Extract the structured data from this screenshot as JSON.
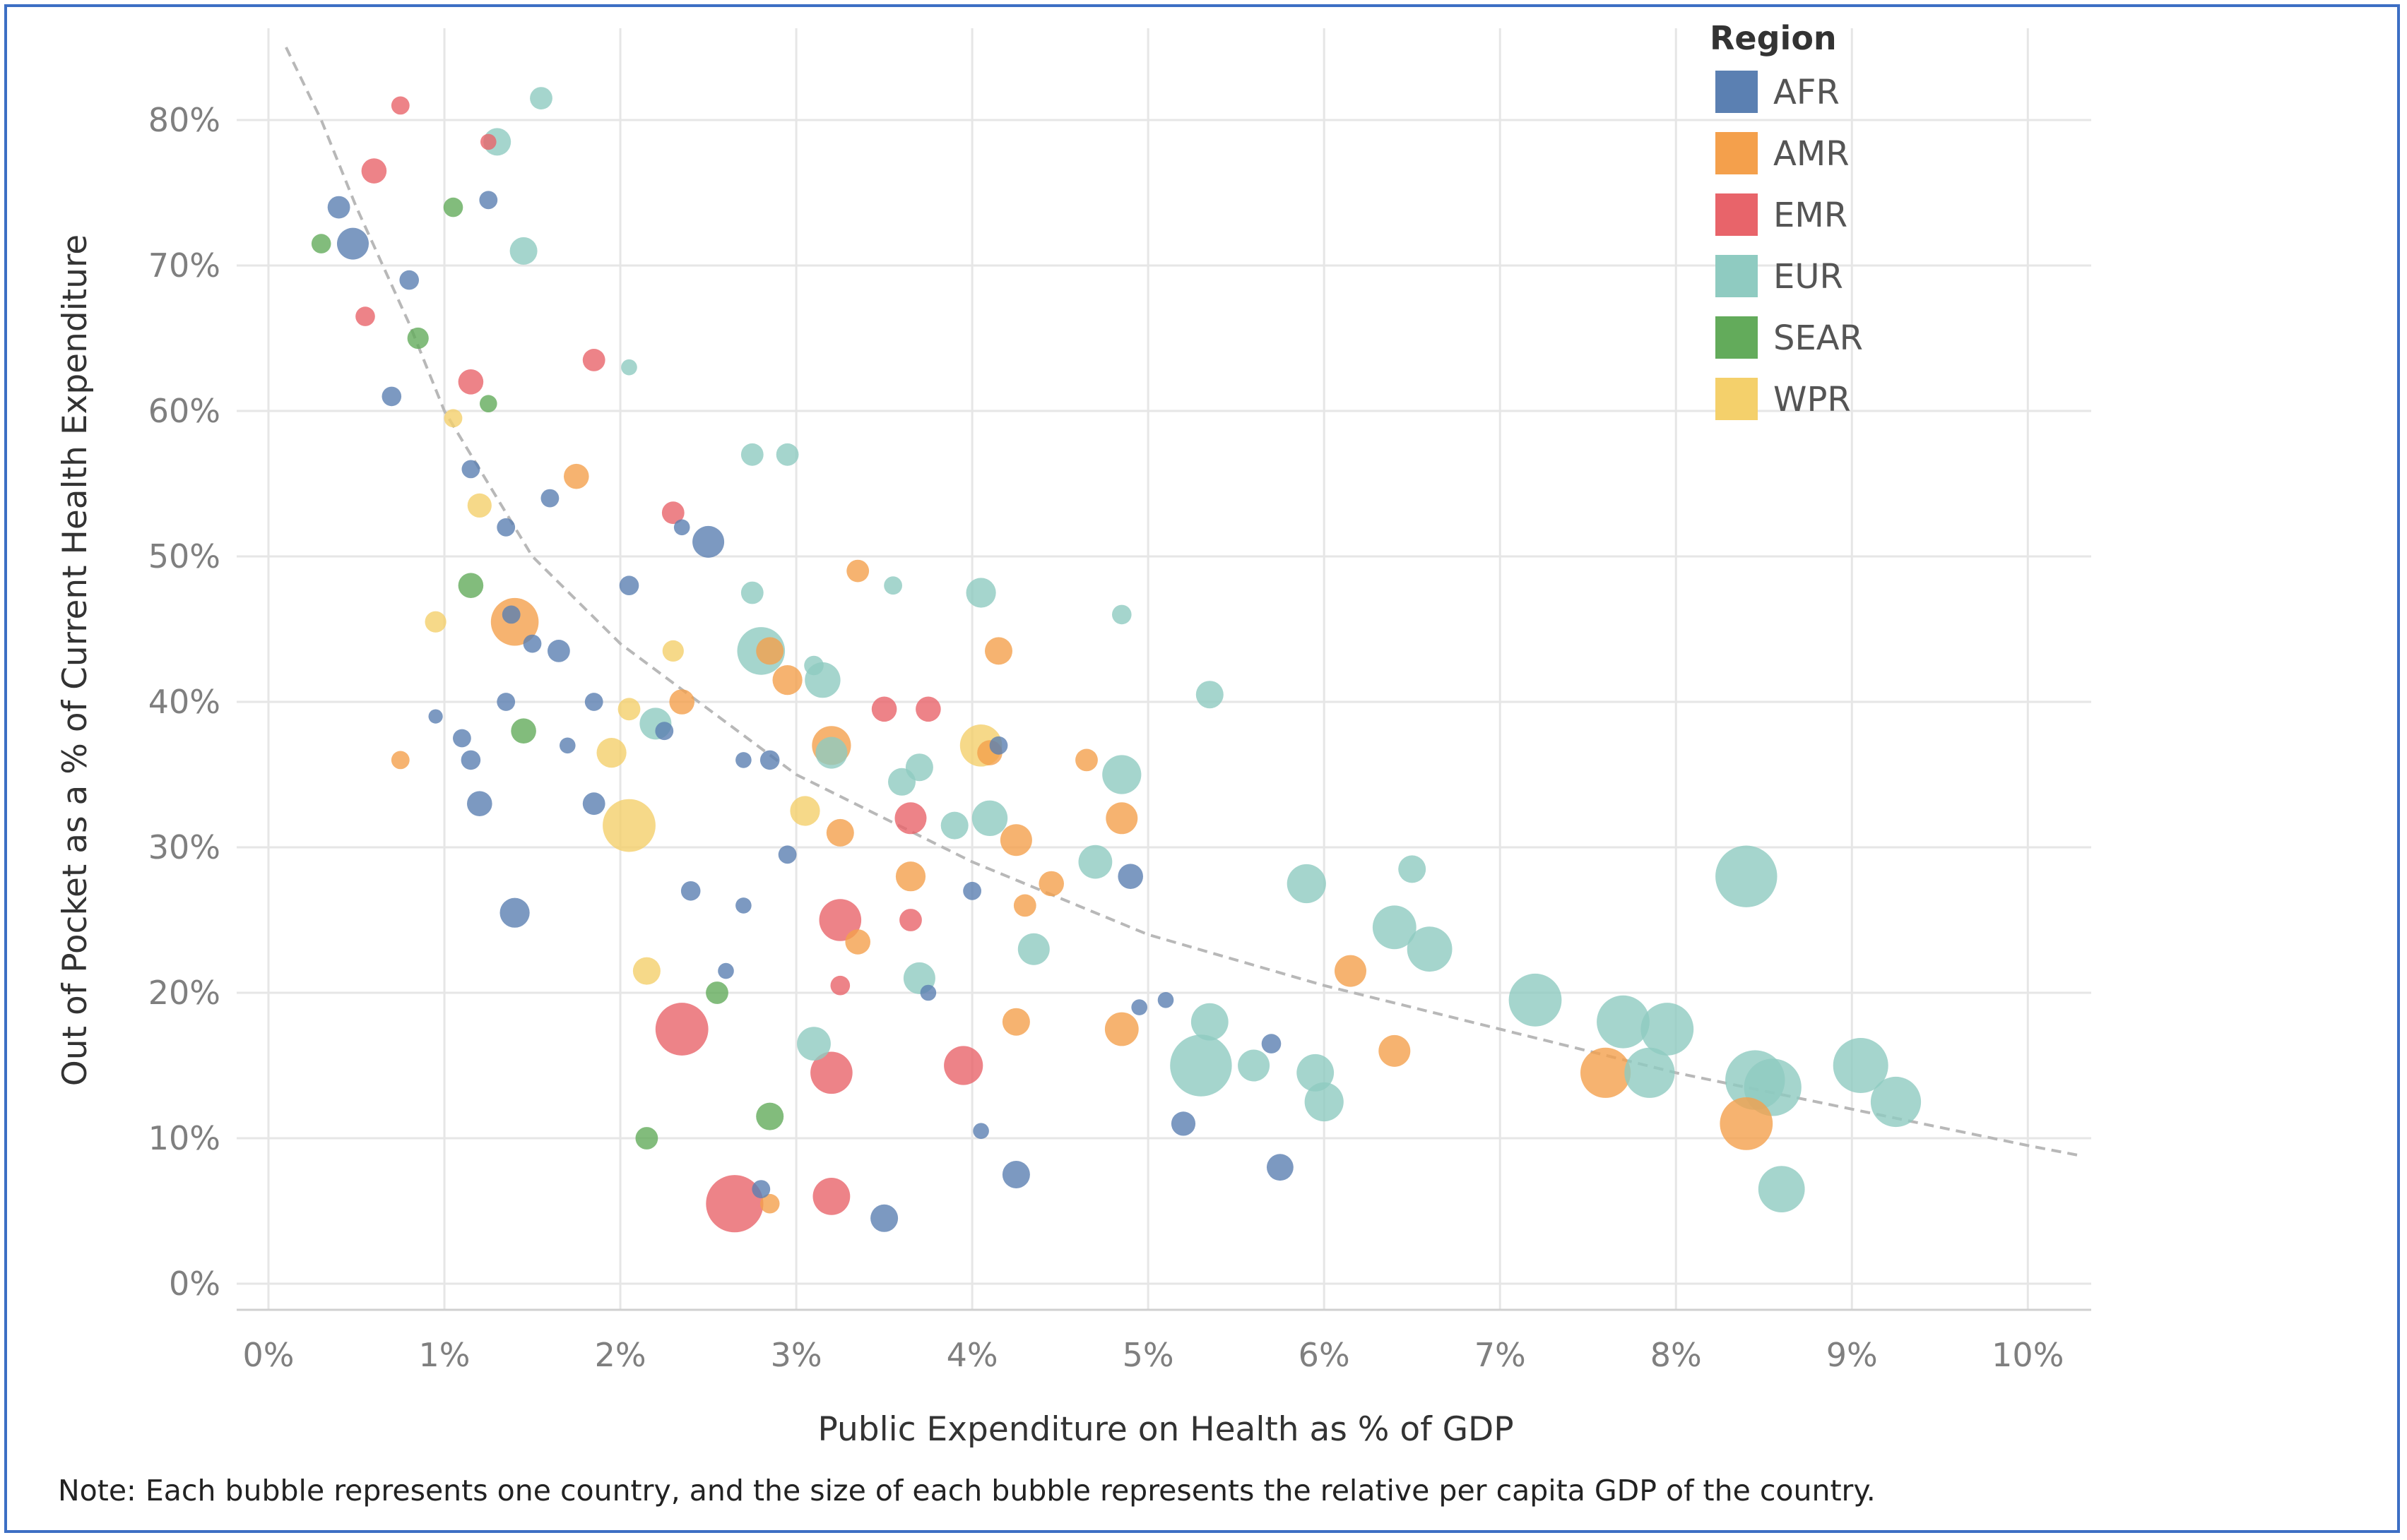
{
  "chart_data": {
    "type": "scatter",
    "subtype": "bubble",
    "title": "",
    "xlabel": "Public Expenditure on Health as % of GDP",
    "ylabel": "Out of Pocket as a % of Current Health Expenditure",
    "xlim": [
      0,
      10.3
    ],
    "ylim": [
      0,
      85
    ],
    "x_ticks": [
      "0%",
      "1%",
      "2%",
      "3%",
      "4%",
      "5%",
      "6%",
      "7%",
      "8%",
      "9%",
      "10%"
    ],
    "y_ticks": [
      "0%",
      "10%",
      "20%",
      "30%",
      "40%",
      "50%",
      "60%",
      "70%",
      "80%"
    ],
    "grid": true,
    "legend": {
      "title": "Region",
      "position": "top-right",
      "entries": [
        {
          "name": "AFR",
          "color": "#5b80b2"
        },
        {
          "name": "AMR",
          "color": "#f4a04c"
        },
        {
          "name": "EMR",
          "color": "#e8646a"
        },
        {
          "name": "EUR",
          "color": "#8fcbc1"
        },
        {
          "name": "SEAR",
          "color": "#63ab5b"
        },
        {
          "name": "WPR",
          "color": "#f4d06b"
        }
      ]
    },
    "trendline": {
      "style": "dashed",
      "color": "#b8b8b8",
      "points": [
        [
          0.1,
          85
        ],
        [
          0.3,
          80
        ],
        [
          0.5,
          74
        ],
        [
          0.8,
          66
        ],
        [
          1.0,
          60
        ],
        [
          1.5,
          50
        ],
        [
          2.0,
          44
        ],
        [
          3.0,
          35
        ],
        [
          4.0,
          29
        ],
        [
          5.0,
          24
        ],
        [
          6.0,
          20.5
        ],
        [
          7.0,
          17.5
        ],
        [
          8.0,
          14.5
        ],
        [
          9.0,
          12
        ],
        [
          10.0,
          9.5
        ],
        [
          10.3,
          8.8
        ]
      ]
    },
    "note": "Note: Each bubble represents one country, and the size of each bubble represents the relative per capita GDP of the country.",
    "series": [
      {
        "name": "AFR",
        "points": [
          {
            "x": 0.4,
            "y": 74,
            "size": 2
          },
          {
            "x": 0.48,
            "y": 71.5,
            "size": 4
          },
          {
            "x": 0.8,
            "y": 69,
            "size": 1.5
          },
          {
            "x": 0.7,
            "y": 61,
            "size": 1.5
          },
          {
            "x": 1.15,
            "y": 56,
            "size": 1.3
          },
          {
            "x": 1.25,
            "y": 74.5,
            "size": 1.3
          },
          {
            "x": 1.35,
            "y": 52,
            "size": 1.3
          },
          {
            "x": 1.38,
            "y": 46,
            "size": 1.3
          },
          {
            "x": 1.5,
            "y": 44,
            "size": 1.3
          },
          {
            "x": 1.65,
            "y": 43.5,
            "size": 2
          },
          {
            "x": 1.6,
            "y": 54,
            "size": 1.3
          },
          {
            "x": 2.05,
            "y": 48,
            "size": 1.5
          },
          {
            "x": 2.35,
            "y": 52,
            "size": 1
          },
          {
            "x": 2.5,
            "y": 51,
            "size": 4
          },
          {
            "x": 1.35,
            "y": 40,
            "size": 1.3
          },
          {
            "x": 1.1,
            "y": 37.5,
            "size": 1.3
          },
          {
            "x": 1.15,
            "y": 36,
            "size": 1.5
          },
          {
            "x": 0.95,
            "y": 39,
            "size": 0.8
          },
          {
            "x": 1.7,
            "y": 37,
            "size": 1
          },
          {
            "x": 1.85,
            "y": 40,
            "size": 1.3
          },
          {
            "x": 1.2,
            "y": 33,
            "size": 2.5
          },
          {
            "x": 1.85,
            "y": 33,
            "size": 2
          },
          {
            "x": 2.25,
            "y": 38,
            "size": 1.3
          },
          {
            "x": 1.4,
            "y": 25.5,
            "size": 3.5
          },
          {
            "x": 2.4,
            "y": 27,
            "size": 1.5
          },
          {
            "x": 2.7,
            "y": 36,
            "size": 1
          },
          {
            "x": 2.85,
            "y": 36,
            "size": 1.5
          },
          {
            "x": 2.95,
            "y": 29.5,
            "size": 1.3
          },
          {
            "x": 2.7,
            "y": 26,
            "size": 1
          },
          {
            "x": 2.6,
            "y": 21.5,
            "size": 1
          },
          {
            "x": 2.8,
            "y": 6.5,
            "size": 1.3
          },
          {
            "x": 3.5,
            "y": 4.5,
            "size": 3
          },
          {
            "x": 3.75,
            "y": 20,
            "size": 1
          },
          {
            "x": 4.0,
            "y": 27,
            "size": 1.3
          },
          {
            "x": 4.15,
            "y": 37,
            "size": 1.3
          },
          {
            "x": 4.05,
            "y": 10.5,
            "size": 1
          },
          {
            "x": 4.25,
            "y": 7.5,
            "size": 3
          },
          {
            "x": 4.9,
            "y": 28,
            "size": 2.5
          },
          {
            "x": 4.95,
            "y": 19,
            "size": 1
          },
          {
            "x": 5.1,
            "y": 19.5,
            "size": 1
          },
          {
            "x": 5.2,
            "y": 11,
            "size": 2.3
          },
          {
            "x": 5.7,
            "y": 16.5,
            "size": 1.5
          },
          {
            "x": 5.75,
            "y": 8,
            "size": 2.8
          }
        ]
      },
      {
        "name": "AMR",
        "points": [
          {
            "x": 0.75,
            "y": 36,
            "size": 1.3
          },
          {
            "x": 1.4,
            "y": 45.5,
            "size": 9
          },
          {
            "x": 1.75,
            "y": 55.5,
            "size": 2.5
          },
          {
            "x": 2.35,
            "y": 40,
            "size": 2.5
          },
          {
            "x": 2.85,
            "y": 43.5,
            "size": 3
          },
          {
            "x": 2.95,
            "y": 41.5,
            "size": 3.5
          },
          {
            "x": 3.2,
            "y": 37,
            "size": 6
          },
          {
            "x": 3.35,
            "y": 49,
            "size": 2
          },
          {
            "x": 3.25,
            "y": 31,
            "size": 3
          },
          {
            "x": 3.65,
            "y": 28,
            "size": 3.5
          },
          {
            "x": 3.35,
            "y": 23.5,
            "size": 2.5
          },
          {
            "x": 4.1,
            "y": 36.5,
            "size": 2.5
          },
          {
            "x": 4.15,
            "y": 43.5,
            "size": 3
          },
          {
            "x": 4.25,
            "y": 30.5,
            "size": 4
          },
          {
            "x": 4.3,
            "y": 26,
            "size": 2
          },
          {
            "x": 4.45,
            "y": 27.5,
            "size": 2.5
          },
          {
            "x": 4.65,
            "y": 36,
            "size": 2
          },
          {
            "x": 4.85,
            "y": 32,
            "size": 4
          },
          {
            "x": 4.25,
            "y": 18,
            "size": 3
          },
          {
            "x": 4.85,
            "y": 17.5,
            "size": 4.5
          },
          {
            "x": 6.15,
            "y": 21.5,
            "size": 4
          },
          {
            "x": 6.4,
            "y": 16,
            "size": 4
          },
          {
            "x": 2.85,
            "y": 5.5,
            "size": 1.5
          },
          {
            "x": 7.6,
            "y": 14.5,
            "size": 10
          },
          {
            "x": 8.4,
            "y": 11,
            "size": 11
          }
        ]
      },
      {
        "name": "EMR",
        "points": [
          {
            "x": 0.75,
            "y": 81,
            "size": 1.3
          },
          {
            "x": 0.6,
            "y": 76.5,
            "size": 2.5
          },
          {
            "x": 0.55,
            "y": 66.5,
            "size": 1.5
          },
          {
            "x": 1.15,
            "y": 62,
            "size": 2.5
          },
          {
            "x": 1.25,
            "y": 78.5,
            "size": 1
          },
          {
            "x": 1.85,
            "y": 63.5,
            "size": 2
          },
          {
            "x": 2.3,
            "y": 53,
            "size": 2
          },
          {
            "x": 3.5,
            "y": 39.5,
            "size": 2.5
          },
          {
            "x": 3.75,
            "y": 39.5,
            "size": 2.5
          },
          {
            "x": 3.65,
            "y": 32,
            "size": 4
          },
          {
            "x": 3.65,
            "y": 25,
            "size": 2
          },
          {
            "x": 3.25,
            "y": 25,
            "size": 7
          },
          {
            "x": 2.35,
            "y": 17.5,
            "size": 11
          },
          {
            "x": 3.2,
            "y": 14.5,
            "size": 7
          },
          {
            "x": 3.25,
            "y": 20.5,
            "size": 1.5
          },
          {
            "x": 3.95,
            "y": 15,
            "size": 6
          },
          {
            "x": 2.65,
            "y": 5.5,
            "size": 13
          },
          {
            "x": 3.2,
            "y": 6,
            "size": 5.5
          }
        ]
      },
      {
        "name": "EUR",
        "points": [
          {
            "x": 1.55,
            "y": 81.5,
            "size": 2
          },
          {
            "x": 1.3,
            "y": 78.5,
            "size": 3
          },
          {
            "x": 1.45,
            "y": 71,
            "size": 3
          },
          {
            "x": 2.05,
            "y": 63,
            "size": 1
          },
          {
            "x": 2.75,
            "y": 57,
            "size": 2
          },
          {
            "x": 2.95,
            "y": 57,
            "size": 2
          },
          {
            "x": 2.75,
            "y": 47.5,
            "size": 2
          },
          {
            "x": 3.55,
            "y": 48,
            "size": 1.3
          },
          {
            "x": 4.05,
            "y": 47.5,
            "size": 3.5
          },
          {
            "x": 4.85,
            "y": 46,
            "size": 1.5
          },
          {
            "x": 2.8,
            "y": 43.5,
            "size": 9
          },
          {
            "x": 3.15,
            "y": 41.5,
            "size": 5
          },
          {
            "x": 3.1,
            "y": 42.5,
            "size": 1.5
          },
          {
            "x": 2.2,
            "y": 38.5,
            "size": 4
          },
          {
            "x": 3.2,
            "y": 36.5,
            "size": 4
          },
          {
            "x": 3.6,
            "y": 34.5,
            "size": 3
          },
          {
            "x": 3.7,
            "y": 35.5,
            "size": 3
          },
          {
            "x": 3.9,
            "y": 31.5,
            "size": 3
          },
          {
            "x": 4.1,
            "y": 32,
            "size": 5
          },
          {
            "x": 4.35,
            "y": 23,
            "size": 4
          },
          {
            "x": 3.7,
            "y": 21,
            "size": 4
          },
          {
            "x": 3.1,
            "y": 16.5,
            "size": 4.5
          },
          {
            "x": 4.85,
            "y": 35,
            "size": 6
          },
          {
            "x": 4.7,
            "y": 29,
            "size": 4.5
          },
          {
            "x": 5.35,
            "y": 40.5,
            "size": 3
          },
          {
            "x": 5.35,
            "y": 18,
            "size": 5.5
          },
          {
            "x": 5.3,
            "y": 15,
            "size": 15
          },
          {
            "x": 5.6,
            "y": 15,
            "size": 4
          },
          {
            "x": 5.9,
            "y": 27.5,
            "size": 6
          },
          {
            "x": 5.95,
            "y": 14.5,
            "size": 5.5
          },
          {
            "x": 6.0,
            "y": 12.5,
            "size": 6
          },
          {
            "x": 6.4,
            "y": 24.5,
            "size": 7.5
          },
          {
            "x": 6.5,
            "y": 28.5,
            "size": 3
          },
          {
            "x": 6.6,
            "y": 23,
            "size": 8
          },
          {
            "x": 7.2,
            "y": 19.5,
            "size": 11
          },
          {
            "x": 7.7,
            "y": 18,
            "size": 11
          },
          {
            "x": 7.95,
            "y": 17.5,
            "size": 11
          },
          {
            "x": 7.85,
            "y": 14.5,
            "size": 10
          },
          {
            "x": 8.4,
            "y": 28,
            "size": 15
          },
          {
            "x": 8.45,
            "y": 14,
            "size": 14
          },
          {
            "x": 8.55,
            "y": 13.5,
            "size": 13
          },
          {
            "x": 8.6,
            "y": 6.5,
            "size": 8.5
          },
          {
            "x": 9.05,
            "y": 15,
            "size": 12
          },
          {
            "x": 9.25,
            "y": 12.5,
            "size": 10
          }
        ]
      },
      {
        "name": "SEAR",
        "points": [
          {
            "x": 0.3,
            "y": 71.5,
            "size": 1.5
          },
          {
            "x": 0.85,
            "y": 65,
            "size": 1.8
          },
          {
            "x": 1.05,
            "y": 74,
            "size": 1.5
          },
          {
            "x": 1.25,
            "y": 60.5,
            "size": 1.2
          },
          {
            "x": 1.15,
            "y": 48,
            "size": 2.5
          },
          {
            "x": 1.45,
            "y": 38,
            "size": 2.5
          },
          {
            "x": 2.55,
            "y": 20,
            "size": 2
          },
          {
            "x": 2.85,
            "y": 11.5,
            "size": 3
          },
          {
            "x": 2.15,
            "y": 10,
            "size": 2
          }
        ]
      },
      {
        "name": "WPR",
        "points": [
          {
            "x": 1.05,
            "y": 59.5,
            "size": 1.3
          },
          {
            "x": 1.2,
            "y": 53.5,
            "size": 2.3
          },
          {
            "x": 0.95,
            "y": 45.5,
            "size": 1.8
          },
          {
            "x": 2.3,
            "y": 43.5,
            "size": 1.8
          },
          {
            "x": 2.05,
            "y": 39.5,
            "size": 2
          },
          {
            "x": 1.95,
            "y": 36.5,
            "size": 3.5
          },
          {
            "x": 2.05,
            "y": 31.5,
            "size": 11
          },
          {
            "x": 2.15,
            "y": 21.5,
            "size": 3
          },
          {
            "x": 3.05,
            "y": 32.5,
            "size": 3.5
          },
          {
            "x": 4.05,
            "y": 37,
            "size": 7
          }
        ]
      }
    ]
  }
}
